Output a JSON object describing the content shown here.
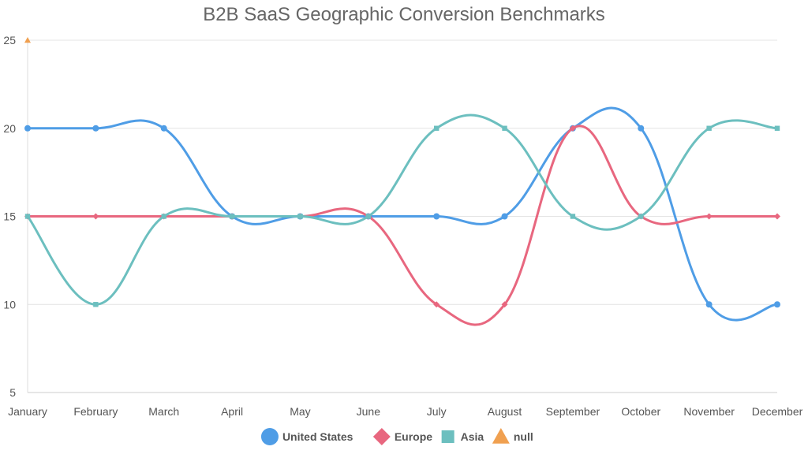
{
  "chart_data": {
    "type": "line",
    "title": "B2B SaaS Geographic Conversion Benchmarks",
    "xlabel": "",
    "ylabel": "",
    "categories": [
      "January",
      "February",
      "March",
      "April",
      "May",
      "June",
      "July",
      "August",
      "September",
      "October",
      "November",
      "December"
    ],
    "ylim": [
      5,
      25
    ],
    "yticks": [
      5,
      10,
      15,
      20,
      25
    ],
    "grid": true,
    "legend": "bottom-center",
    "series": [
      {
        "name": "United States",
        "color": "#4f9de6",
        "marker": "circle",
        "values": [
          20,
          20,
          20,
          15,
          15,
          15,
          15,
          15,
          20,
          20,
          10,
          10
        ]
      },
      {
        "name": "Europe",
        "color": "#e8677f",
        "marker": "diamond",
        "values": [
          15,
          15,
          15,
          15,
          15,
          15,
          10,
          10,
          20,
          15,
          15,
          15
        ]
      },
      {
        "name": "Asia",
        "color": "#6cbfbf",
        "marker": "square",
        "values": [
          15,
          10,
          15,
          15,
          15,
          15,
          20,
          20,
          15,
          15,
          20,
          20
        ]
      },
      {
        "name": "null",
        "color": "#f0a050",
        "marker": "triangle",
        "values": [
          25,
          null,
          null,
          null,
          null,
          null,
          null,
          null,
          null,
          null,
          null,
          null
        ]
      }
    ]
  }
}
